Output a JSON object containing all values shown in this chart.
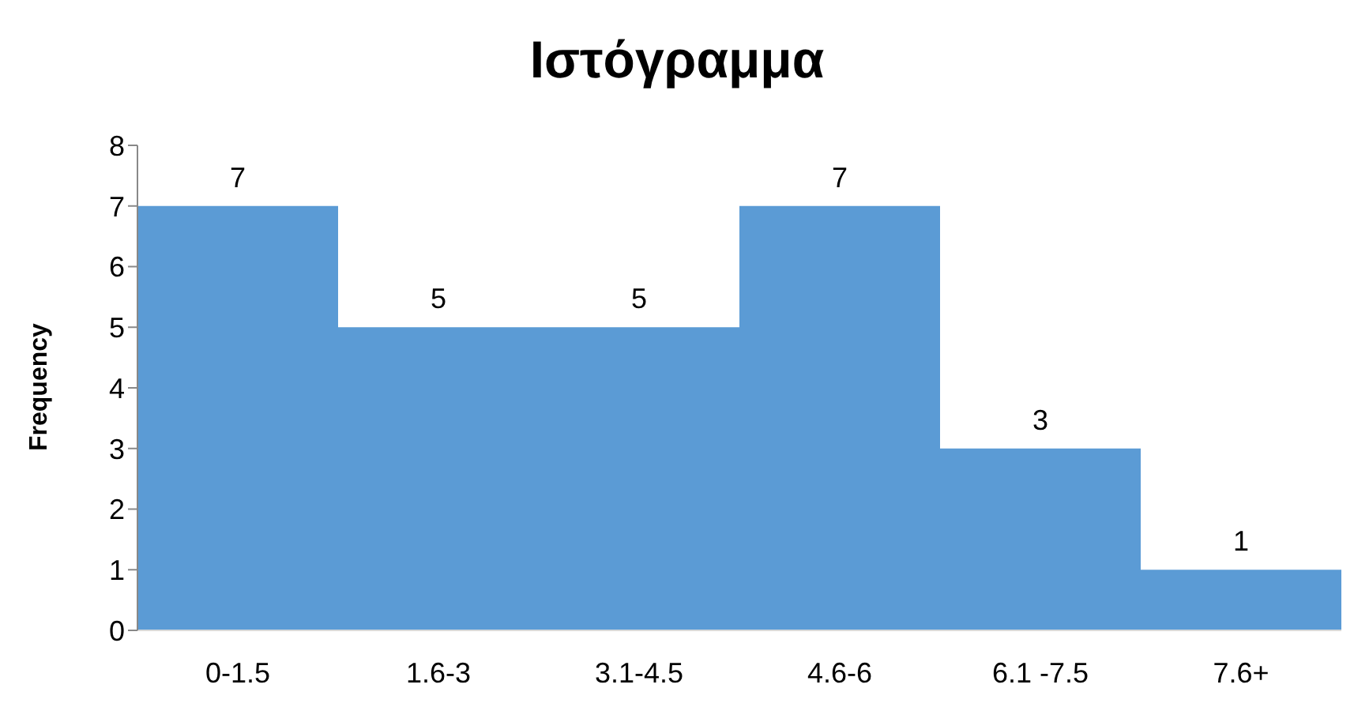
{
  "chart_data": {
    "type": "bar",
    "title": "Ιστόγραμμα",
    "ylabel": "Frequency",
    "categories": [
      "0-1.5",
      "1.6-3",
      "3.1-4.5",
      "4.6-6",
      "6.1 -7.5",
      "7.6+"
    ],
    "values": [
      7,
      5,
      5,
      7,
      3,
      1
    ],
    "color": "#5b9bd5",
    "ylim": [
      0,
      8
    ],
    "yticks": [
      0,
      1,
      2,
      3,
      4,
      5,
      6,
      7,
      8
    ],
    "data_labels": true
  }
}
